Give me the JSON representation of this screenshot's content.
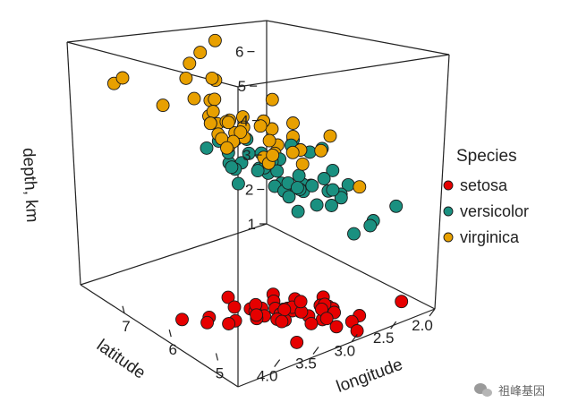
{
  "chart_data": {
    "type": "scatter3d",
    "x_axis": {
      "label": "latitude",
      "ticks": [
        "2.0",
        "2.5",
        "3.0",
        "3.5",
        "4.0"
      ],
      "range": [
        2.0,
        4.4
      ]
    },
    "y_axis": {
      "label": "longitude",
      "ticks": [
        "5",
        "6",
        "7"
      ],
      "range": [
        4.3,
        7.9
      ]
    },
    "z_axis": {
      "label": "depth, km",
      "ticks": [
        "1",
        "2",
        "3",
        "4",
        "5",
        "6"
      ],
      "range": [
        1,
        6.9
      ]
    },
    "legend": {
      "title": "Species",
      "placement": "right"
    },
    "series": [
      {
        "name": "setosa",
        "color": "#e60000",
        "points": [
          [
            3.5,
            5.1,
            1.4
          ],
          [
            3.0,
            4.9,
            1.4
          ],
          [
            3.2,
            4.7,
            1.3
          ],
          [
            3.1,
            4.6,
            1.5
          ],
          [
            3.6,
            5.0,
            1.4
          ],
          [
            3.9,
            5.4,
            1.7
          ],
          [
            3.4,
            4.6,
            1.4
          ],
          [
            3.4,
            5.0,
            1.5
          ],
          [
            2.9,
            4.4,
            1.4
          ],
          [
            3.1,
            4.9,
            1.5
          ],
          [
            3.7,
            5.4,
            1.5
          ],
          [
            3.4,
            4.8,
            1.6
          ],
          [
            3.0,
            4.8,
            1.4
          ],
          [
            3.0,
            4.3,
            1.1
          ],
          [
            4.0,
            5.8,
            1.2
          ],
          [
            4.4,
            5.7,
            1.5
          ],
          [
            3.9,
            5.4,
            1.3
          ],
          [
            3.5,
            5.1,
            1.4
          ],
          [
            3.8,
            5.7,
            1.7
          ],
          [
            3.8,
            5.1,
            1.5
          ],
          [
            3.4,
            5.4,
            1.7
          ],
          [
            3.7,
            5.1,
            1.5
          ],
          [
            3.6,
            4.6,
            1.0
          ],
          [
            3.3,
            5.1,
            1.7
          ],
          [
            3.4,
            4.8,
            1.9
          ],
          [
            3.0,
            5.0,
            1.6
          ],
          [
            3.4,
            5.0,
            1.6
          ],
          [
            3.5,
            5.2,
            1.5
          ],
          [
            3.4,
            5.2,
            1.4
          ],
          [
            3.2,
            4.7,
            1.6
          ],
          [
            3.1,
            4.8,
            1.6
          ],
          [
            3.4,
            5.4,
            1.5
          ],
          [
            4.1,
            5.2,
            1.5
          ],
          [
            4.2,
            5.5,
            1.4
          ],
          [
            3.1,
            4.9,
            1.5
          ],
          [
            3.2,
            5.0,
            1.2
          ],
          [
            3.5,
            5.5,
            1.3
          ],
          [
            3.6,
            4.9,
            1.4
          ],
          [
            3.0,
            4.4,
            1.3
          ],
          [
            3.4,
            5.1,
            1.5
          ],
          [
            3.5,
            5.0,
            1.3
          ],
          [
            2.3,
            4.5,
            1.3
          ],
          [
            3.2,
            4.4,
            1.3
          ],
          [
            3.5,
            5.0,
            1.6
          ],
          [
            3.8,
            5.1,
            1.9
          ],
          [
            3.0,
            4.8,
            1.4
          ],
          [
            3.8,
            5.1,
            1.6
          ],
          [
            3.2,
            4.6,
            1.4
          ],
          [
            3.7,
            5.3,
            1.5
          ],
          [
            3.3,
            5.0,
            1.4
          ]
        ]
      },
      {
        "name": "versicolor",
        "color": "#1a9080",
        "points": [
          [
            3.2,
            7.0,
            4.7
          ],
          [
            3.2,
            6.4,
            4.5
          ],
          [
            3.1,
            6.9,
            4.9
          ],
          [
            2.3,
            5.5,
            4.0
          ],
          [
            2.8,
            6.5,
            4.6
          ],
          [
            2.8,
            5.7,
            4.5
          ],
          [
            3.3,
            6.3,
            4.7
          ],
          [
            2.4,
            4.9,
            3.3
          ],
          [
            2.9,
            6.6,
            4.6
          ],
          [
            2.7,
            5.2,
            3.9
          ],
          [
            2.0,
            5.0,
            3.5
          ],
          [
            3.0,
            5.9,
            4.2
          ],
          [
            2.2,
            6.0,
            4.0
          ],
          [
            2.9,
            6.1,
            4.7
          ],
          [
            2.9,
            5.6,
            3.6
          ],
          [
            3.1,
            6.7,
            4.4
          ],
          [
            3.0,
            5.6,
            4.5
          ],
          [
            2.7,
            5.8,
            4.1
          ],
          [
            2.2,
            6.2,
            4.5
          ],
          [
            2.5,
            5.6,
            3.9
          ],
          [
            3.2,
            5.9,
            4.8
          ],
          [
            2.8,
            6.1,
            4.0
          ],
          [
            2.5,
            6.3,
            4.9
          ],
          [
            2.8,
            6.1,
            4.7
          ],
          [
            2.9,
            6.4,
            4.3
          ],
          [
            3.0,
            6.6,
            4.4
          ],
          [
            2.8,
            6.8,
            4.8
          ],
          [
            3.0,
            6.7,
            5.0
          ],
          [
            2.9,
            6.0,
            4.5
          ],
          [
            2.6,
            5.7,
            3.5
          ],
          [
            2.4,
            5.5,
            3.8
          ],
          [
            2.4,
            5.5,
            3.7
          ],
          [
            2.7,
            5.8,
            3.9
          ],
          [
            2.7,
            6.0,
            5.1
          ],
          [
            3.0,
            5.4,
            4.5
          ],
          [
            3.4,
            6.0,
            4.5
          ],
          [
            3.1,
            6.7,
            4.7
          ],
          [
            2.3,
            6.3,
            4.4
          ],
          [
            3.0,
            5.6,
            4.1
          ],
          [
            2.5,
            5.5,
            4.0
          ],
          [
            2.6,
            5.5,
            4.4
          ],
          [
            3.0,
            6.1,
            4.6
          ],
          [
            2.6,
            5.8,
            4.0
          ],
          [
            2.3,
            5.0,
            3.3
          ],
          [
            2.7,
            5.6,
            4.2
          ],
          [
            3.0,
            5.7,
            4.2
          ],
          [
            2.9,
            5.7,
            4.2
          ],
          [
            2.9,
            6.2,
            4.3
          ],
          [
            2.5,
            5.1,
            3.0
          ],
          [
            2.8,
            5.7,
            4.1
          ]
        ]
      },
      {
        "name": "virginica",
        "color": "#e8a000",
        "points": [
          [
            3.3,
            6.3,
            6.0
          ],
          [
            2.7,
            5.8,
            5.1
          ],
          [
            3.0,
            7.1,
            5.9
          ],
          [
            2.9,
            6.3,
            5.6
          ],
          [
            3.0,
            6.5,
            5.8
          ],
          [
            3.0,
            7.6,
            6.6
          ],
          [
            2.5,
            4.9,
            4.5
          ],
          [
            2.9,
            7.3,
            6.3
          ],
          [
            2.5,
            6.7,
            5.8
          ],
          [
            3.6,
            7.2,
            6.1
          ],
          [
            3.2,
            6.5,
            5.1
          ],
          [
            2.7,
            6.4,
            5.3
          ],
          [
            3.0,
            6.8,
            5.5
          ],
          [
            2.5,
            5.7,
            5.0
          ],
          [
            2.8,
            5.8,
            5.1
          ],
          [
            3.2,
            6.4,
            5.3
          ],
          [
            3.0,
            6.5,
            5.5
          ],
          [
            3.8,
            7.7,
            6.7
          ],
          [
            2.6,
            7.7,
            6.9
          ],
          [
            2.2,
            6.0,
            5.0
          ],
          [
            3.2,
            6.9,
            5.7
          ],
          [
            2.8,
            5.6,
            4.9
          ],
          [
            2.8,
            7.7,
            6.7
          ],
          [
            2.7,
            6.3,
            4.9
          ],
          [
            3.3,
            6.7,
            5.7
          ],
          [
            3.2,
            7.2,
            6.0
          ],
          [
            2.8,
            6.2,
            4.8
          ],
          [
            3.0,
            6.1,
            4.9
          ],
          [
            2.8,
            6.4,
            5.6
          ],
          [
            3.0,
            7.2,
            5.8
          ],
          [
            2.8,
            7.4,
            6.1
          ],
          [
            3.8,
            7.9,
            6.4
          ],
          [
            2.8,
            6.4,
            5.6
          ],
          [
            2.8,
            6.3,
            5.1
          ],
          [
            2.6,
            6.1,
            5.6
          ],
          [
            3.0,
            7.7,
            6.1
          ],
          [
            3.4,
            6.3,
            5.6
          ],
          [
            3.1,
            6.4,
            5.5
          ],
          [
            3.0,
            6.0,
            4.8
          ],
          [
            3.1,
            6.9,
            5.4
          ],
          [
            3.1,
            6.7,
            5.6
          ],
          [
            3.1,
            6.9,
            5.1
          ],
          [
            2.7,
            5.8,
            5.1
          ],
          [
            3.2,
            6.8,
            5.9
          ],
          [
            3.3,
            6.7,
            5.7
          ],
          [
            3.0,
            6.7,
            5.2
          ],
          [
            2.5,
            6.3,
            5.0
          ],
          [
            3.0,
            6.5,
            5.2
          ],
          [
            3.4,
            6.2,
            5.4
          ],
          [
            3.0,
            5.9,
            5.1
          ]
        ]
      }
    ]
  },
  "watermark": {
    "text": "祖峰基因",
    "icon": "wechat-icon"
  }
}
